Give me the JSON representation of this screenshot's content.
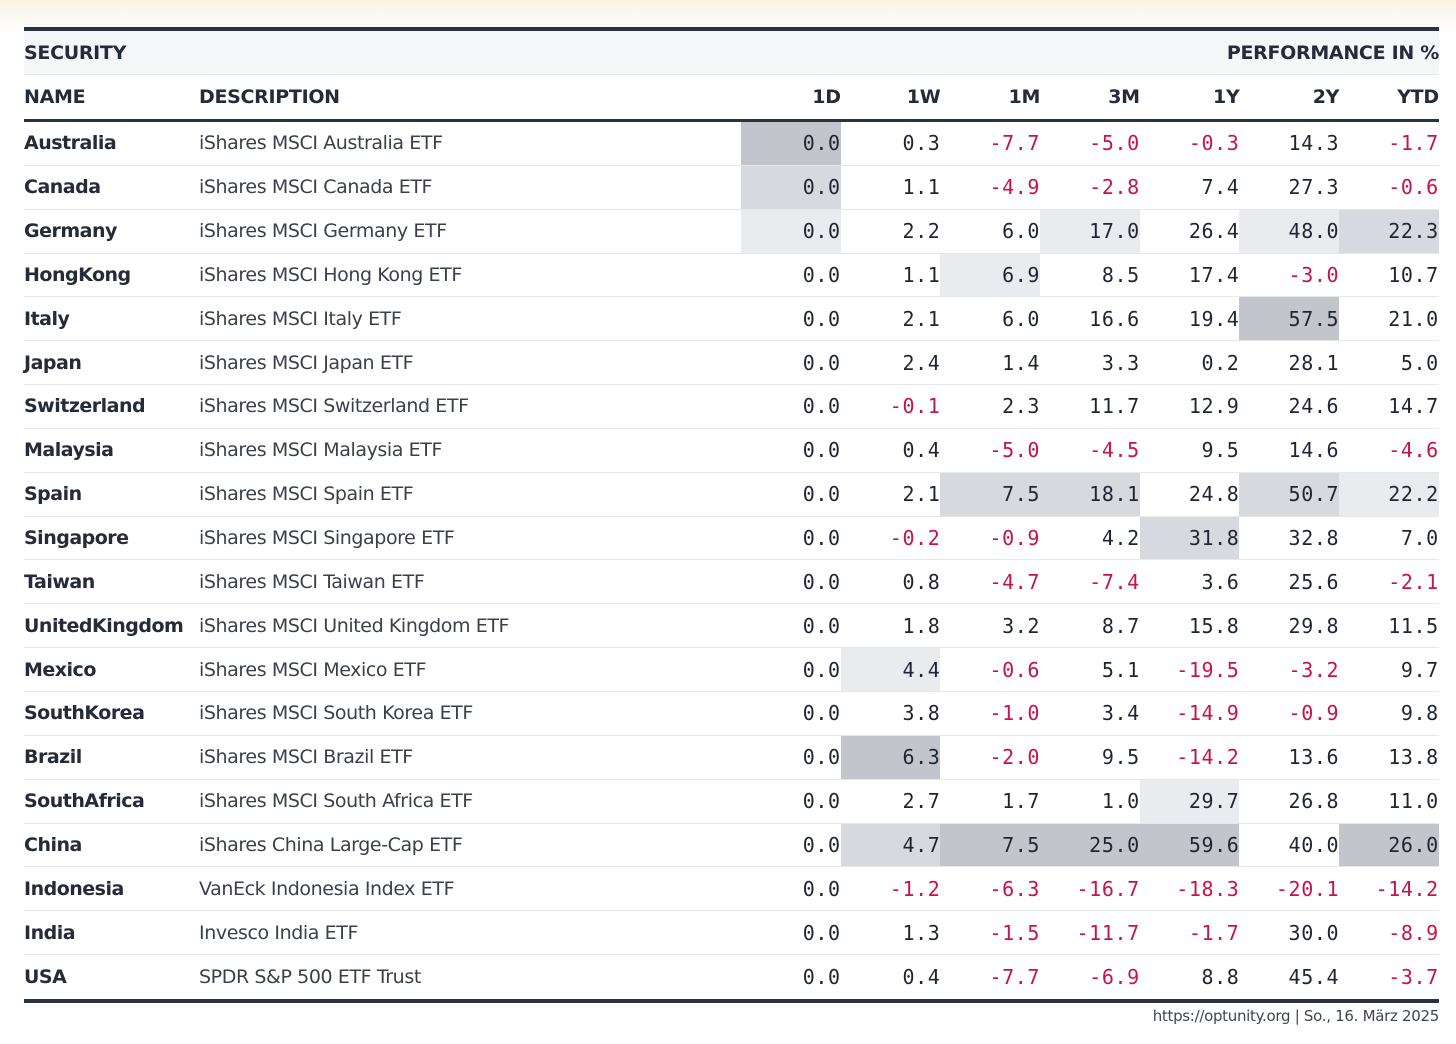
{
  "header": {
    "group_left": "SECURITY",
    "group_right": "PERFORMANCE IN %",
    "columns": [
      "NAME",
      "DESCRIPTION",
      "1D",
      "1W",
      "1M",
      "3M",
      "1Y",
      "2Y",
      "YTD"
    ]
  },
  "colors": {
    "rule": "#2b3244",
    "negative": "#c8124a",
    "shade_dark": "#c3c5cc",
    "shade_mid": "#d7d9de",
    "shade_light": "#eaebee"
  },
  "rows": [
    {
      "name": "Australia",
      "desc": "iShares MSCI Australia ETF",
      "v": [
        "0.0",
        "0.3",
        "-7.7",
        "-5.0",
        "-0.3",
        "14.3",
        "-1.7"
      ],
      "shade": [
        3,
        0,
        0,
        0,
        0,
        0,
        0
      ]
    },
    {
      "name": "Canada",
      "desc": "iShares MSCI Canada ETF",
      "v": [
        "0.0",
        "1.1",
        "-4.9",
        "-2.8",
        "7.4",
        "27.3",
        "-0.6"
      ],
      "shade": [
        2,
        0,
        0,
        0,
        0,
        0,
        0
      ]
    },
    {
      "name": "Germany",
      "desc": "iShares MSCI Germany ETF",
      "v": [
        "0.0",
        "2.2",
        "6.0",
        "17.0",
        "26.4",
        "48.0",
        "22.3"
      ],
      "shade": [
        1,
        0,
        0,
        1,
        0,
        1,
        2
      ]
    },
    {
      "name": "HongKong",
      "desc": "iShares MSCI Hong Kong ETF",
      "v": [
        "0.0",
        "1.1",
        "6.9",
        "8.5",
        "17.4",
        "-3.0",
        "10.7"
      ],
      "shade": [
        0,
        0,
        1,
        0,
        0,
        0,
        0
      ]
    },
    {
      "name": "Italy",
      "desc": "iShares MSCI Italy ETF",
      "v": [
        "0.0",
        "2.1",
        "6.0",
        "16.6",
        "19.4",
        "57.5",
        "21.0"
      ],
      "shade": [
        0,
        0,
        0,
        0,
        0,
        3,
        0
      ]
    },
    {
      "name": "Japan",
      "desc": "iShares MSCI Japan ETF",
      "v": [
        "0.0",
        "2.4",
        "1.4",
        "3.3",
        "0.2",
        "28.1",
        "5.0"
      ],
      "shade": [
        0,
        0,
        0,
        0,
        0,
        0,
        0
      ]
    },
    {
      "name": "Switzerland",
      "desc": "iShares MSCI Switzerland ETF",
      "v": [
        "0.0",
        "-0.1",
        "2.3",
        "11.7",
        "12.9",
        "24.6",
        "14.7"
      ],
      "shade": [
        0,
        0,
        0,
        0,
        0,
        0,
        0
      ]
    },
    {
      "name": "Malaysia",
      "desc": "iShares MSCI Malaysia ETF",
      "v": [
        "0.0",
        "0.4",
        "-5.0",
        "-4.5",
        "9.5",
        "14.6",
        "-4.6"
      ],
      "shade": [
        0,
        0,
        0,
        0,
        0,
        0,
        0
      ]
    },
    {
      "name": "Spain",
      "desc": "iShares MSCI Spain ETF",
      "v": [
        "0.0",
        "2.1",
        "7.5",
        "18.1",
        "24.8",
        "50.7",
        "22.2"
      ],
      "shade": [
        0,
        0,
        2,
        2,
        0,
        2,
        1
      ]
    },
    {
      "name": "Singapore",
      "desc": "iShares MSCI Singapore ETF",
      "v": [
        "0.0",
        "-0.2",
        "-0.9",
        "4.2",
        "31.8",
        "32.8",
        "7.0"
      ],
      "shade": [
        0,
        0,
        0,
        0,
        2,
        0,
        0
      ]
    },
    {
      "name": "Taiwan",
      "desc": "iShares MSCI Taiwan ETF",
      "v": [
        "0.0",
        "0.8",
        "-4.7",
        "-7.4",
        "3.6",
        "25.6",
        "-2.1"
      ],
      "shade": [
        0,
        0,
        0,
        0,
        0,
        0,
        0
      ]
    },
    {
      "name": "UnitedKingdom",
      "desc": "iShares MSCI United Kingdom ETF",
      "v": [
        "0.0",
        "1.8",
        "3.2",
        "8.7",
        "15.8",
        "29.8",
        "11.5"
      ],
      "shade": [
        0,
        0,
        0,
        0,
        0,
        0,
        0
      ]
    },
    {
      "name": "Mexico",
      "desc": "iShares MSCI Mexico ETF",
      "v": [
        "0.0",
        "4.4",
        "-0.6",
        "5.1",
        "-19.5",
        "-3.2",
        "9.7"
      ],
      "shade": [
        0,
        1,
        0,
        0,
        0,
        0,
        0
      ]
    },
    {
      "name": "SouthKorea",
      "desc": "iShares MSCI South Korea ETF",
      "v": [
        "0.0",
        "3.8",
        "-1.0",
        "3.4",
        "-14.9",
        "-0.9",
        "9.8"
      ],
      "shade": [
        0,
        0,
        0,
        0,
        0,
        0,
        0
      ]
    },
    {
      "name": "Brazil",
      "desc": "iShares MSCI Brazil ETF",
      "v": [
        "0.0",
        "6.3",
        "-2.0",
        "9.5",
        "-14.2",
        "13.6",
        "13.8"
      ],
      "shade": [
        0,
        3,
        0,
        0,
        0,
        0,
        0
      ]
    },
    {
      "name": "SouthAfrica",
      "desc": "iShares MSCI South Africa ETF",
      "v": [
        "0.0",
        "2.7",
        "1.7",
        "1.0",
        "29.7",
        "26.8",
        "11.0"
      ],
      "shade": [
        0,
        0,
        0,
        0,
        1,
        0,
        0
      ]
    },
    {
      "name": "China",
      "desc": "iShares China Large-Cap ETF",
      "v": [
        "0.0",
        "4.7",
        "7.5",
        "25.0",
        "59.6",
        "40.0",
        "26.0"
      ],
      "shade": [
        0,
        2,
        3,
        3,
        3,
        0,
        3
      ]
    },
    {
      "name": "Indonesia",
      "desc": "VanEck Indonesia Index ETF",
      "v": [
        "0.0",
        "-1.2",
        "-6.3",
        "-16.7",
        "-18.3",
        "-20.1",
        "-14.2"
      ],
      "shade": [
        0,
        0,
        0,
        0,
        0,
        0,
        0
      ]
    },
    {
      "name": "India",
      "desc": "Invesco India ETF",
      "v": [
        "0.0",
        "1.3",
        "-1.5",
        "-11.7",
        "-1.7",
        "30.0",
        "-8.9"
      ],
      "shade": [
        0,
        0,
        0,
        0,
        0,
        0,
        0
      ]
    },
    {
      "name": "USA",
      "desc": "SPDR S&P 500 ETF Trust",
      "v": [
        "0.0",
        "0.4",
        "-7.7",
        "-6.9",
        "8.8",
        "45.4",
        "-3.7"
      ],
      "shade": [
        0,
        0,
        0,
        0,
        0,
        0,
        0
      ]
    }
  ],
  "footer": "https://optunity.org | So., 16. März 2025"
}
